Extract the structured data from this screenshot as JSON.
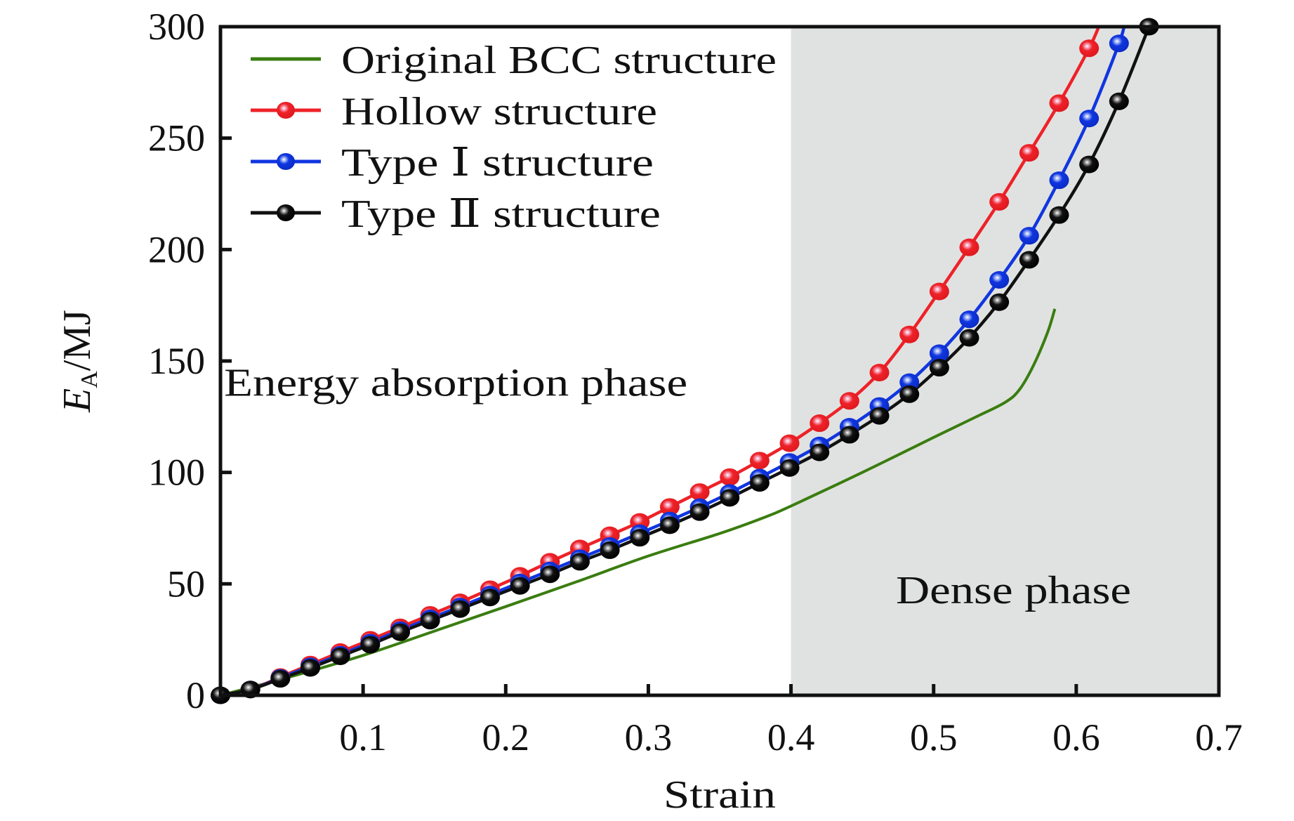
{
  "chart_data": {
    "type": "line",
    "title": "",
    "xlabel": "Strain",
    "ylabel": {
      "main": "E",
      "subscript": "A",
      "unit": "/MJ"
    },
    "xlim": [
      0,
      0.7
    ],
    "ylim": [
      0,
      300
    ],
    "xticks": [
      0.1,
      0.2,
      0.3,
      0.4,
      0.5,
      0.6,
      0.7
    ],
    "xtick_labels": [
      "0.1",
      "0.2",
      "0.3",
      "0.4",
      "0.5",
      "0.6",
      "0.7"
    ],
    "yticks": [
      0,
      50,
      100,
      150,
      200,
      250,
      300
    ],
    "ytick_labels": [
      "0",
      "50",
      "100",
      "150",
      "200",
      "250",
      "300"
    ],
    "grid": false,
    "legend_position": "top-left",
    "shaded_region": {
      "x_from": 0.4,
      "x_to": 0.7,
      "color": "#e0e2e1",
      "label": "Dense phase"
    },
    "annotations": [
      {
        "text": "Energy absorption phase",
        "x": 0.165,
        "y": 140
      },
      {
        "text": "Dense phase",
        "x": 0.556,
        "y": 47
      }
    ],
    "series": [
      {
        "name": "Original BCC structure",
        "color": "#3a7d10",
        "marker": false,
        "x": [
          0,
          0.05,
          0.1,
          0.15,
          0.2,
          0.25,
          0.3,
          0.35,
          0.38,
          0.4,
          0.45,
          0.5,
          0.53,
          0.55,
          0.56,
          0.57,
          0.58,
          0.585
        ],
        "y": [
          0,
          8.5,
          17.9,
          28.8,
          39.8,
          51,
          62.5,
          72.6,
          79.5,
          84.9,
          100,
          115.7,
          125,
          131.4,
          137,
          148,
          163,
          173.4
        ]
      },
      {
        "name": "Hollow structure",
        "color": "#ee2228",
        "marker": true,
        "x": [
          0,
          0.021,
          0.042,
          0.063,
          0.084,
          0.105,
          0.126,
          0.147,
          0.168,
          0.189,
          0.21,
          0.231,
          0.252,
          0.273,
          0.294,
          0.315,
          0.336,
          0.357,
          0.378,
          0.399,
          0.42,
          0.441,
          0.462,
          0.483,
          0.504,
          0.525,
          0.546,
          0.567,
          0.588,
          0.609
        ],
        "y": [
          0,
          2.6,
          8.2,
          13.8,
          19.4,
          24.9,
          30.5,
          36.1,
          41.7,
          47.6,
          53.6,
          59.9,
          65.9,
          71.8,
          77.8,
          84.5,
          91.2,
          97.9,
          105.3,
          113.1,
          122.1,
          132.1,
          144.8,
          161.9,
          181.2,
          201,
          221.4,
          243.4,
          265.7,
          290.3
        ],
        "line_end": {
          "x": 0.617,
          "y": 300
        }
      },
      {
        "name": "Type Ⅰ structure",
        "color": "#1036e0",
        "marker": true,
        "x": [
          0,
          0.021,
          0.042,
          0.063,
          0.084,
          0.105,
          0.126,
          0.147,
          0.168,
          0.189,
          0.21,
          0.231,
          0.252,
          0.273,
          0.294,
          0.315,
          0.336,
          0.357,
          0.378,
          0.399,
          0.42,
          0.441,
          0.462,
          0.483,
          0.504,
          0.525,
          0.546,
          0.567,
          0.588,
          0.609,
          0.63
        ],
        "y": [
          0,
          2.6,
          7.8,
          13,
          18.2,
          23.6,
          29.2,
          34.5,
          39.8,
          45.2,
          50.6,
          56,
          61.5,
          67,
          72.7,
          78.4,
          84.4,
          90.8,
          97.7,
          104.7,
          112.1,
          120.5,
          129.8,
          140.5,
          153.5,
          168.7,
          186.4,
          206.2,
          231.1,
          258.8,
          292.5
        ],
        "line_end": {
          "x": 0.634,
          "y": 300
        }
      },
      {
        "name": "Type Ⅱ structure",
        "color": "#111111",
        "marker": true,
        "x": [
          0,
          0.021,
          0.042,
          0.063,
          0.084,
          0.105,
          0.126,
          0.147,
          0.168,
          0.189,
          0.21,
          0.231,
          0.252,
          0.273,
          0.294,
          0.315,
          0.336,
          0.357,
          0.378,
          0.399,
          0.42,
          0.441,
          0.462,
          0.483,
          0.504,
          0.525,
          0.546,
          0.567,
          0.588,
          0.609,
          0.63,
          0.651
        ],
        "y": [
          0,
          2.6,
          7.4,
          12.3,
          17.5,
          22.7,
          28.3,
          33.5,
          38.7,
          43.9,
          49.1,
          54.3,
          59.9,
          65.1,
          70.7,
          76.3,
          82.2,
          88.6,
          95.3,
          102,
          109,
          116.9,
          125.4,
          135.1,
          147,
          160.4,
          176.4,
          195.4,
          215.5,
          238.2,
          266.5,
          300
        ]
      }
    ]
  }
}
